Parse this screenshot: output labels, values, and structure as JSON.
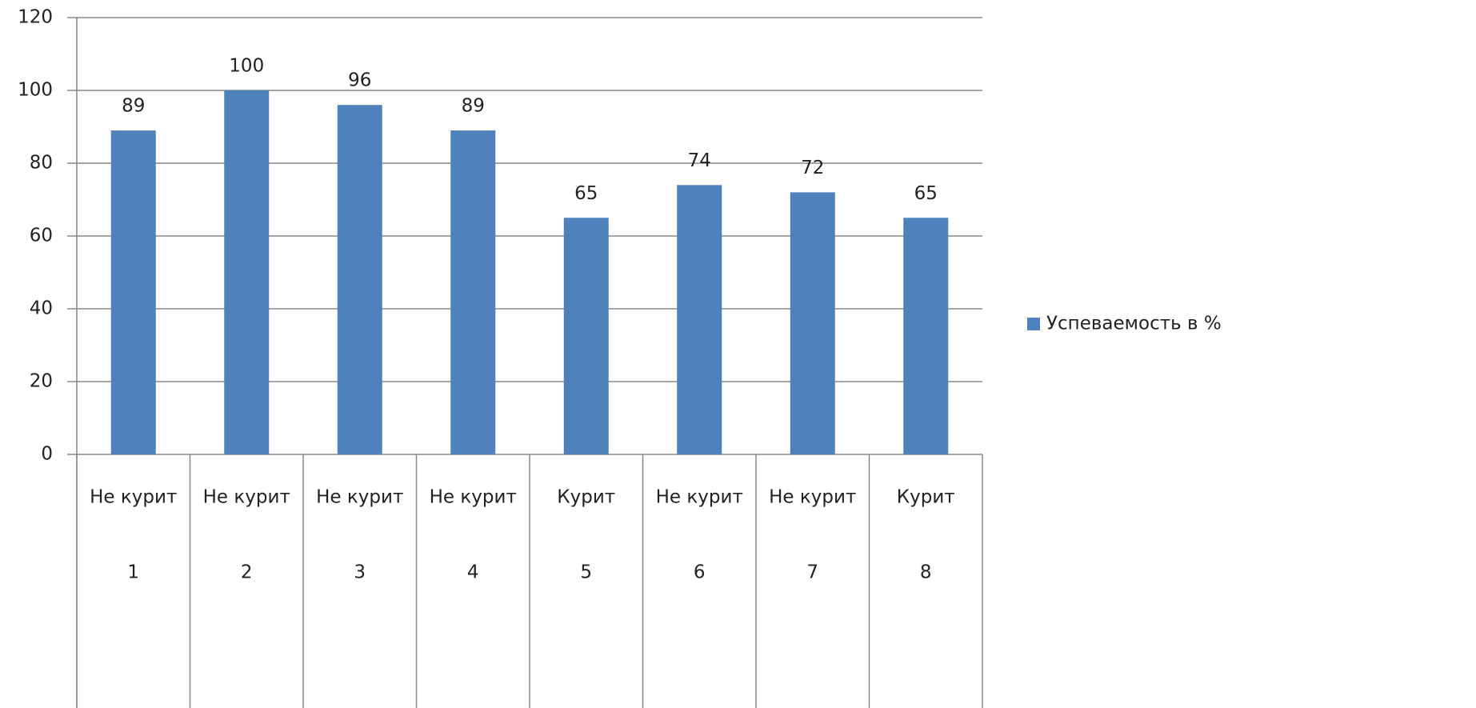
{
  "chart_data": {
    "type": "bar",
    "categories": [
      "1",
      "2",
      "3",
      "4",
      "5",
      "6",
      "7",
      "8"
    ],
    "category_groups": [
      "Не курит",
      "Не курит",
      "Не курит",
      "Не курит",
      "Курит",
      "Не курит",
      "Не курит",
      "Курит"
    ],
    "series": [
      {
        "name": "Успеваемость в %",
        "color": "#4f81bd",
        "values": [
          89,
          100,
          96,
          89,
          65,
          74,
          72,
          65
        ]
      }
    ],
    "ylim": [
      0,
      120
    ],
    "yticks": [
      0,
      20,
      40,
      60,
      80,
      100,
      120
    ],
    "grid": true,
    "data_labels": true,
    "legend": "right"
  }
}
